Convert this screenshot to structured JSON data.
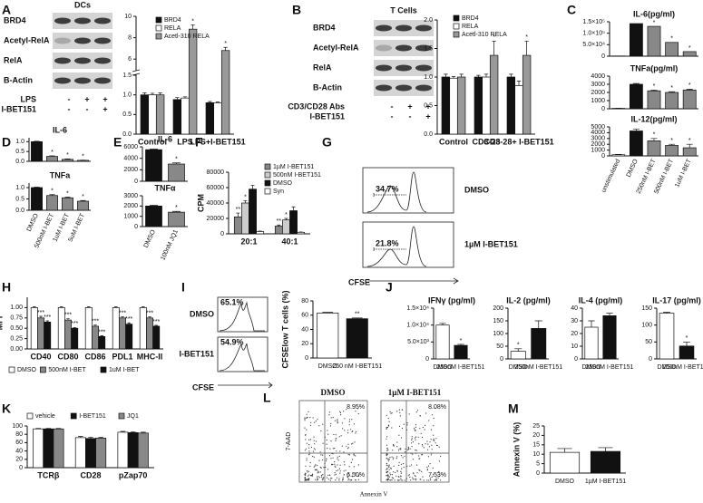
{
  "panels": [
    "A",
    "B",
    "C",
    "D",
    "E",
    "F",
    "G",
    "H",
    "I",
    "J",
    "K",
    "L",
    "M"
  ],
  "blots": [
    {
      "title": "DCs",
      "rows": [
        "BRD4",
        "Acetyl-RelA",
        "RelA",
        "B-Actin"
      ],
      "treatments": [
        {
          "name": "LPS",
          "signs": [
            "-",
            "+",
            "+"
          ]
        },
        {
          "name": "I-BET151",
          "signs": [
            "-",
            "-",
            "+"
          ]
        }
      ]
    },
    {
      "title": "T Cells",
      "rows": [
        "BRD4",
        "Acetyl-RelA",
        "RelA",
        "B-Actin"
      ],
      "treatments": [
        {
          "name": "CD3/CD28 Abs",
          "signs": [
            "-",
            "+",
            "+"
          ]
        },
        {
          "name": "I-BET151",
          "signs": [
            "-",
            "-",
            "+"
          ]
        }
      ]
    }
  ],
  "flow": {
    "G": {
      "rows": [
        {
          "percent": "34.7%",
          "label": "DMSO"
        },
        {
          "percent": "21.8%",
          "label": "1µM I-BET151"
        }
      ],
      "xlabel": "CFSE"
    },
    "I": {
      "rows": [
        {
          "percent": "65.1%",
          "label": "DMSO"
        },
        {
          "percent": "54.9%",
          "label": "I-BET151"
        }
      ],
      "xlabel": "CFSE"
    },
    "L": {
      "plots": [
        {
          "title": "DMSO",
          "upper": "8.95%",
          "lower": "6.50%"
        },
        {
          "title": "1µM I-BET151",
          "upper": "8.08%",
          "lower": "7.53%"
        }
      ],
      "ylabel": "7-AAD",
      "xlabel": "Annexin V"
    }
  },
  "chart_data": [
    {
      "type": "bar",
      "categories": [
        "Control",
        "LPS",
        "LPS+I-BET151"
      ],
      "ylim": [
        0,
        10
      ],
      "ybreak": [
        1.5,
        5
      ],
      "yticks": [
        {
          "value": 0,
          "label": "0.0"
        },
        {
          "value": 0.5,
          "label": "0.5"
        },
        {
          "value": 1,
          "label": "1.0"
        },
        {
          "value": 1.5,
          "label": "1.5"
        },
        6,
        8,
        10
      ],
      "series": [
        {
          "name": "BRD4",
          "color": "#111111",
          "values": [
            1.0,
            0.88,
            0.8
          ],
          "errors": [
            0.05,
            0.05,
            0.03
          ]
        },
        {
          "name": "RELA",
          "color": "#ffffff",
          "values": [
            1.0,
            0.92,
            0.8
          ],
          "errors": [
            0.04,
            0.03,
            0.02
          ]
        },
        {
          "name": "Acetl-310 RELA",
          "color": "#999999",
          "values": [
            1.0,
            8.8,
            6.8
          ],
          "errors": [
            0.05,
            0.4,
            0.3
          ],
          "stars": [
            null,
            "*",
            "*"
          ]
        }
      ]
    },
    {
      "type": "bar",
      "categories": [
        "Control",
        "CD3-28",
        "CD3-28+ I-BET151"
      ],
      "ylim": [
        0,
        2
      ],
      "yticks": [
        {
          "value": 0,
          "label": "0.0"
        },
        {
          "value": 0.5,
          "label": "0.5"
        },
        {
          "value": 1,
          "label": "1.0"
        },
        {
          "value": 1.5,
          "label": "1.5"
        },
        {
          "value": 2,
          "label": "2.0"
        }
      ],
      "series": [
        {
          "name": "BRD4",
          "color": "#111111",
          "values": [
            1.0,
            1.0,
            1.0
          ],
          "errors": [
            0.05,
            0.03,
            0.05
          ]
        },
        {
          "name": "RELA",
          "color": "#ffffff",
          "values": [
            0.98,
            1.0,
            0.85
          ],
          "errors": [
            0.03,
            0.05,
            0.08
          ]
        },
        {
          "name": "Acetl-310 RELA",
          "color": "#999999",
          "values": [
            1.0,
            1.38,
            1.38
          ],
          "errors": [
            0.05,
            0.25,
            0.25
          ],
          "stars": [
            null,
            "*",
            "*"
          ]
        }
      ]
    },
    {
      "type": "bar",
      "title": "IL-6(pg/ml)",
      "ylim": [
        0,
        150000
      ],
      "yticks": [
        0,
        {
          "value": 50000,
          "label": "5.0×10⁴"
        },
        {
          "value": 100000,
          "label": "1.0×10⁵"
        },
        {
          "value": 150000,
          "label": "1.5×10⁵"
        }
      ],
      "values": [
        1000,
        142000,
        130000,
        60000,
        20000
      ],
      "colors": [
        "#ffffff",
        "#111111",
        "#888888",
        "#888888",
        "#888888"
      ],
      "stars": [
        null,
        null,
        "*",
        "*",
        "*"
      ]
    },
    {
      "type": "bar",
      "title": "TNFa(pg/ml)",
      "ylim": [
        0,
        4000
      ],
      "yticks": [
        0,
        1000,
        2000,
        3000,
        4000
      ],
      "values": [
        50,
        3000,
        2200,
        2000,
        2300
      ],
      "errors": [
        10,
        100,
        100,
        80,
        100
      ],
      "colors": [
        "#ffffff",
        "#111111",
        "#888888",
        "#888888",
        "#888888"
      ],
      "stars": [
        null,
        null,
        "*",
        "*",
        "*"
      ]
    },
    {
      "type": "bar",
      "title": "IL-12(pg/ml)",
      "categories": [
        "unstimulated",
        "DMSO",
        "250nM I-BET",
        "500nM I-BET",
        "1uM I-BET"
      ],
      "ylim": [
        0,
        5000
      ],
      "yticks": [
        0,
        1000,
        2000,
        3000,
        4000,
        5000
      ],
      "values": [
        200,
        4300,
        2600,
        1800,
        1400
      ],
      "errors": [
        50,
        300,
        400,
        200,
        600
      ],
      "colors": [
        "#ffffff",
        "#111111",
        "#888888",
        "#888888",
        "#888888"
      ],
      "stars": [
        null,
        null,
        "*",
        "*",
        "*"
      ]
    },
    {
      "type": "bar",
      "title": "IL-6",
      "ylim": [
        0,
        1.2
      ],
      "yticks": [
        {
          "value": 0,
          "label": "0.0"
        },
        {
          "value": 0.5,
          "label": "0.5"
        },
        {
          "value": 1,
          "label": "1.0"
        }
      ],
      "values": [
        1.0,
        0.25,
        0.1,
        0.05
      ],
      "errors": [
        0.02,
        0.03,
        0.02,
        0.01
      ],
      "colors": [
        "#111111",
        "#888888",
        "#888888",
        "#888888"
      ],
      "stars": [
        null,
        "*",
        "*",
        "*"
      ]
    },
    {
      "type": "bar",
      "title": "TNFa",
      "categories": [
        "DMSO",
        "500nM I-BET",
        "1uM I-BET",
        "5uM I-BET"
      ],
      "ylim": [
        0,
        1.2
      ],
      "yticks": [
        {
          "value": 0,
          "label": "0.0"
        },
        {
          "value": 0.5,
          "label": "0.5"
        },
        {
          "value": 1,
          "label": "1.0"
        }
      ],
      "values": [
        1.0,
        0.65,
        0.55,
        0.4
      ],
      "errors": [
        0.02,
        0.04,
        0.03,
        0.03
      ],
      "colors": [
        "#111111",
        "#888888",
        "#888888",
        "#888888"
      ],
      "stars": [
        null,
        "*",
        "*",
        "*"
      ]
    },
    {
      "type": "bar",
      "title": "IL-6",
      "ylim": [
        0,
        6000
      ],
      "yticks": [
        0,
        2000,
        4000,
        6000
      ],
      "values": [
        5500,
        3000
      ],
      "errors": [
        100,
        200
      ],
      "colors": [
        "#111111",
        "#888888"
      ],
      "stars": [
        null,
        "*"
      ]
    },
    {
      "type": "bar",
      "title": "TNFα",
      "categories": [
        "DMSO",
        "100nM JQ1"
      ],
      "ylim": [
        0,
        3000
      ],
      "yticks": [
        0,
        1000,
        2000,
        3000
      ],
      "values": [
        2000,
        1400
      ],
      "errors": [
        60,
        80
      ],
      "colors": [
        "#111111",
        "#888888"
      ],
      "stars": [
        null,
        "*"
      ]
    },
    {
      "type": "bar",
      "ylabel": "CPM",
      "categories": [
        "20:1",
        "40:1"
      ],
      "ylim": [
        0,
        80000
      ],
      "yticks": [
        0,
        20000,
        40000,
        60000,
        80000
      ],
      "series": [
        {
          "name": "1µM I-BET151",
          "color": "#888888",
          "values": [
            22000,
            10000
          ],
          "errors": [
            5000,
            1500
          ],
          "stars": [
            "**",
            "**"
          ]
        },
        {
          "name": "500nM I-BET151",
          "color": "#cccccc",
          "values": [
            40000,
            18000
          ],
          "errors": [
            3000,
            2000
          ],
          "stars": [
            "*",
            "*"
          ]
        },
        {
          "name": "DMSO",
          "color": "#111111",
          "values": [
            58000,
            30000
          ],
          "errors": [
            5000,
            5000
          ]
        },
        {
          "name": "Syn",
          "color": "#ffffff",
          "values": [
            3000,
            2000
          ],
          "errors": [
            500,
            400
          ]
        }
      ]
    },
    {
      "type": "bar",
      "ylabel": "MFI",
      "categories": [
        "CD40",
        "CD80",
        "CD86",
        "PDL1",
        "MHC-II"
      ],
      "ylim": [
        0,
        1.25
      ],
      "yticks": [
        {
          "value": 0,
          "label": "0.00"
        },
        {
          "value": 0.25,
          "label": "0.25"
        },
        {
          "value": 0.5,
          "label": "0.50"
        },
        {
          "value": 0.75,
          "label": "0.75"
        },
        {
          "value": 1,
          "label": "1.00"
        }
      ],
      "series": [
        {
          "name": "DMSO",
          "color": "#ffffff",
          "values": [
            1,
            1,
            1,
            1,
            1
          ],
          "errors": [
            0.02,
            0.02,
            0.02,
            0.02,
            0.02
          ]
        },
        {
          "name": "500nM I-BET",
          "color": "#888888",
          "values": [
            0.75,
            0.7,
            0.55,
            0.75,
            0.75
          ],
          "errors": [
            0.04,
            0.03,
            0.03,
            0.03,
            0.03
          ],
          "stars": [
            "***",
            "***",
            "***",
            "***",
            "***"
          ]
        },
        {
          "name": "1uM I-BET",
          "color": "#111111",
          "values": [
            0.65,
            0.5,
            0.3,
            0.6,
            0.55
          ],
          "errors": [
            0.03,
            0.02,
            0.02,
            0.03,
            0.02
          ],
          "stars": [
            "***",
            "***",
            "***",
            "***",
            "***"
          ]
        }
      ]
    },
    {
      "type": "bar",
      "ylabel": "CFSElow T cells (%)",
      "categories": [
        "DMSO",
        "250 nM I-BET151"
      ],
      "ylim": [
        0,
        80
      ],
      "yticks": [
        0,
        20,
        40,
        60,
        80
      ],
      "values": [
        63,
        55
      ],
      "errors": [
        1,
        1
      ],
      "colors": [
        "#ffffff",
        "#111111"
      ],
      "stars": [
        null,
        "**"
      ]
    },
    {
      "type": "bar",
      "title": "IFNγ (pg/ml)",
      "categories": [
        "DMSO",
        "250nM I-BET151"
      ],
      "ylim": [
        0,
        15000
      ],
      "yticks": [
        0,
        {
          "value": 5000,
          "label": "5.0×10³"
        },
        {
          "value": 10000,
          "label": "1.0×10⁴"
        },
        {
          "value": 15000,
          "label": "1.5×10⁴"
        }
      ],
      "values": [
        10000,
        4000
      ],
      "errors": [
        500,
        300
      ],
      "colors": [
        "#ffffff",
        "#111111"
      ],
      "stars": [
        null,
        "*"
      ]
    },
    {
      "type": "bar",
      "title": "IL-2 (pg/ml)",
      "categories": [
        "DMSO",
        "250nM I-BET151"
      ],
      "ylim": [
        0,
        200
      ],
      "yticks": [
        0,
        50,
        100,
        150,
        200
      ],
      "values": [
        30,
        120
      ],
      "errors": [
        10,
        30
      ],
      "colors": [
        "#ffffff",
        "#111111"
      ],
      "stars": [
        "*",
        null
      ]
    },
    {
      "type": "bar",
      "title": "IL-4 (pg/ml)",
      "categories": [
        "DMSO",
        "250nM I-BET151"
      ],
      "ylim": [
        0,
        40
      ],
      "yticks": [
        0,
        10,
        20,
        30,
        40
      ],
      "values": [
        25,
        34
      ],
      "errors": [
        5,
        2
      ],
      "colors": [
        "#ffffff",
        "#111111"
      ]
    },
    {
      "type": "bar",
      "title": "IL-17 (pg/ml)",
      "categories": [
        "DMSO",
        "250nM I-BET151"
      ],
      "ylim": [
        0,
        150
      ],
      "yticks": [
        0,
        50,
        100,
        150
      ],
      "values": [
        135,
        38
      ],
      "errors": [
        3,
        12
      ],
      "colors": [
        "#ffffff",
        "#111111"
      ],
      "stars": [
        null,
        "*"
      ]
    },
    {
      "type": "bar",
      "categories": [
        "TCRβ",
        "CD28",
        "pZap70"
      ],
      "ylim": [
        0,
        100
      ],
      "yticks": [
        0,
        20,
        40,
        60,
        80,
        100
      ],
      "series": [
        {
          "name": "vehicle",
          "color": "#ffffff",
          "values": [
            93,
            72,
            85
          ],
          "errors": [
            1,
            3,
            2
          ]
        },
        {
          "name": "I-BET151",
          "color": "#111111",
          "values": [
            93,
            70,
            84
          ],
          "errors": [
            1,
            3,
            2
          ]
        },
        {
          "name": "JQ1",
          "color": "#888888",
          "values": [
            93,
            71,
            83
          ],
          "errors": [
            1,
            2,
            2
          ]
        }
      ]
    },
    {
      "type": "bar",
      "ylabel": "Annexin V (%)",
      "categories": [
        "DMSO",
        "1µM I-BET151"
      ],
      "ylim": [
        0,
        25
      ],
      "yticks": [
        0,
        5,
        10,
        15,
        20,
        25
      ],
      "values": [
        11,
        11.5
      ],
      "errors": [
        2,
        2
      ],
      "colors": [
        "#ffffff",
        "#111111"
      ]
    }
  ]
}
